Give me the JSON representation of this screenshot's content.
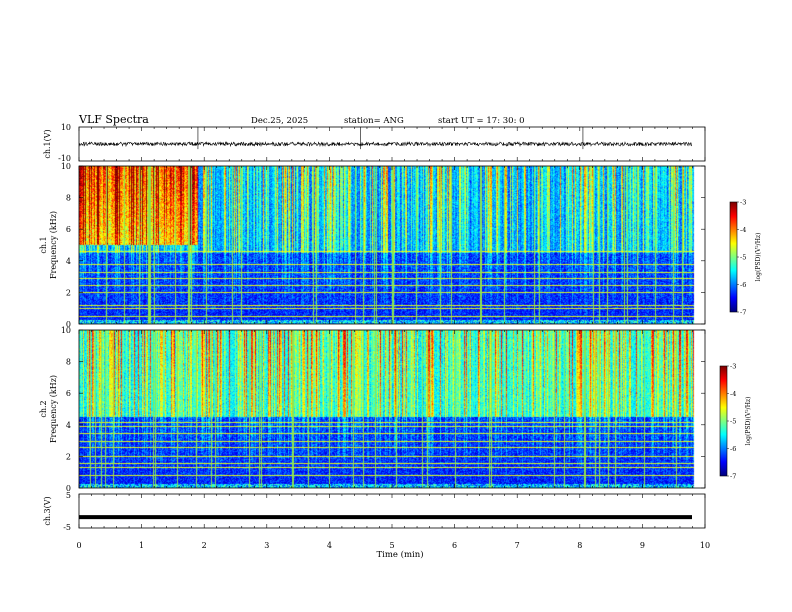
{
  "header": {
    "title": "VLF Spectra",
    "date": "Dec.25, 2025",
    "station": "station= ANG",
    "start": "start  UT =   17: 30: 0"
  },
  "chart_data": [
    {
      "type": "line",
      "name": "ch1-waveform",
      "ylabel": "ch.1(V)",
      "ylim": [
        -10,
        10
      ],
      "y_ticks": [
        "10",
        "-10"
      ],
      "xlim": [
        0,
        10
      ],
      "baseline": 0,
      "spikes_min": [
        1.9,
        4.5,
        8.05
      ]
    },
    {
      "type": "heatmap",
      "name": "ch1-spectrogram",
      "ylabel_line1": "ch.1",
      "ylabel_line2": "Frequency (kHz)",
      "ylim": [
        0,
        10
      ],
      "y_ticks": [
        "0",
        "2",
        "4",
        "6",
        "8",
        "10"
      ],
      "xlim": [
        0,
        10
      ],
      "data_end_min": 9.82,
      "colorbar": {
        "label": "log(PSD)(V²/Hz)",
        "range": [
          -7,
          -3
        ],
        "ticks": [
          "-3",
          "-4",
          "-5",
          "-6",
          "-7"
        ]
      }
    },
    {
      "type": "heatmap",
      "name": "ch2-spectrogram",
      "ylabel_line1": "ch.2",
      "ylabel_line2": "Frequency (kHz)",
      "ylim": [
        0,
        10
      ],
      "y_ticks": [
        "0",
        "2",
        "4",
        "6",
        "8",
        "10"
      ],
      "xlim": [
        0,
        10
      ],
      "data_end_min": 9.82,
      "colorbar": {
        "label": "log(PSD)(V²/Hz)",
        "range": [
          -7,
          -3
        ],
        "ticks": [
          "-3",
          "-4",
          "-5",
          "-6",
          "-7"
        ]
      }
    },
    {
      "type": "line",
      "name": "ch3-waveform",
      "ylabel": "ch.3(V)",
      "ylim": [
        -5,
        5
      ],
      "y_ticks": [
        "5",
        "-5"
      ],
      "xlim": [
        0,
        10
      ],
      "baseline": -1.8
    }
  ],
  "x_axis": {
    "label": "Time (min)",
    "ticks": [
      "0",
      "1",
      "2",
      "3",
      "4",
      "5",
      "6",
      "7",
      "8",
      "9",
      "10"
    ]
  }
}
